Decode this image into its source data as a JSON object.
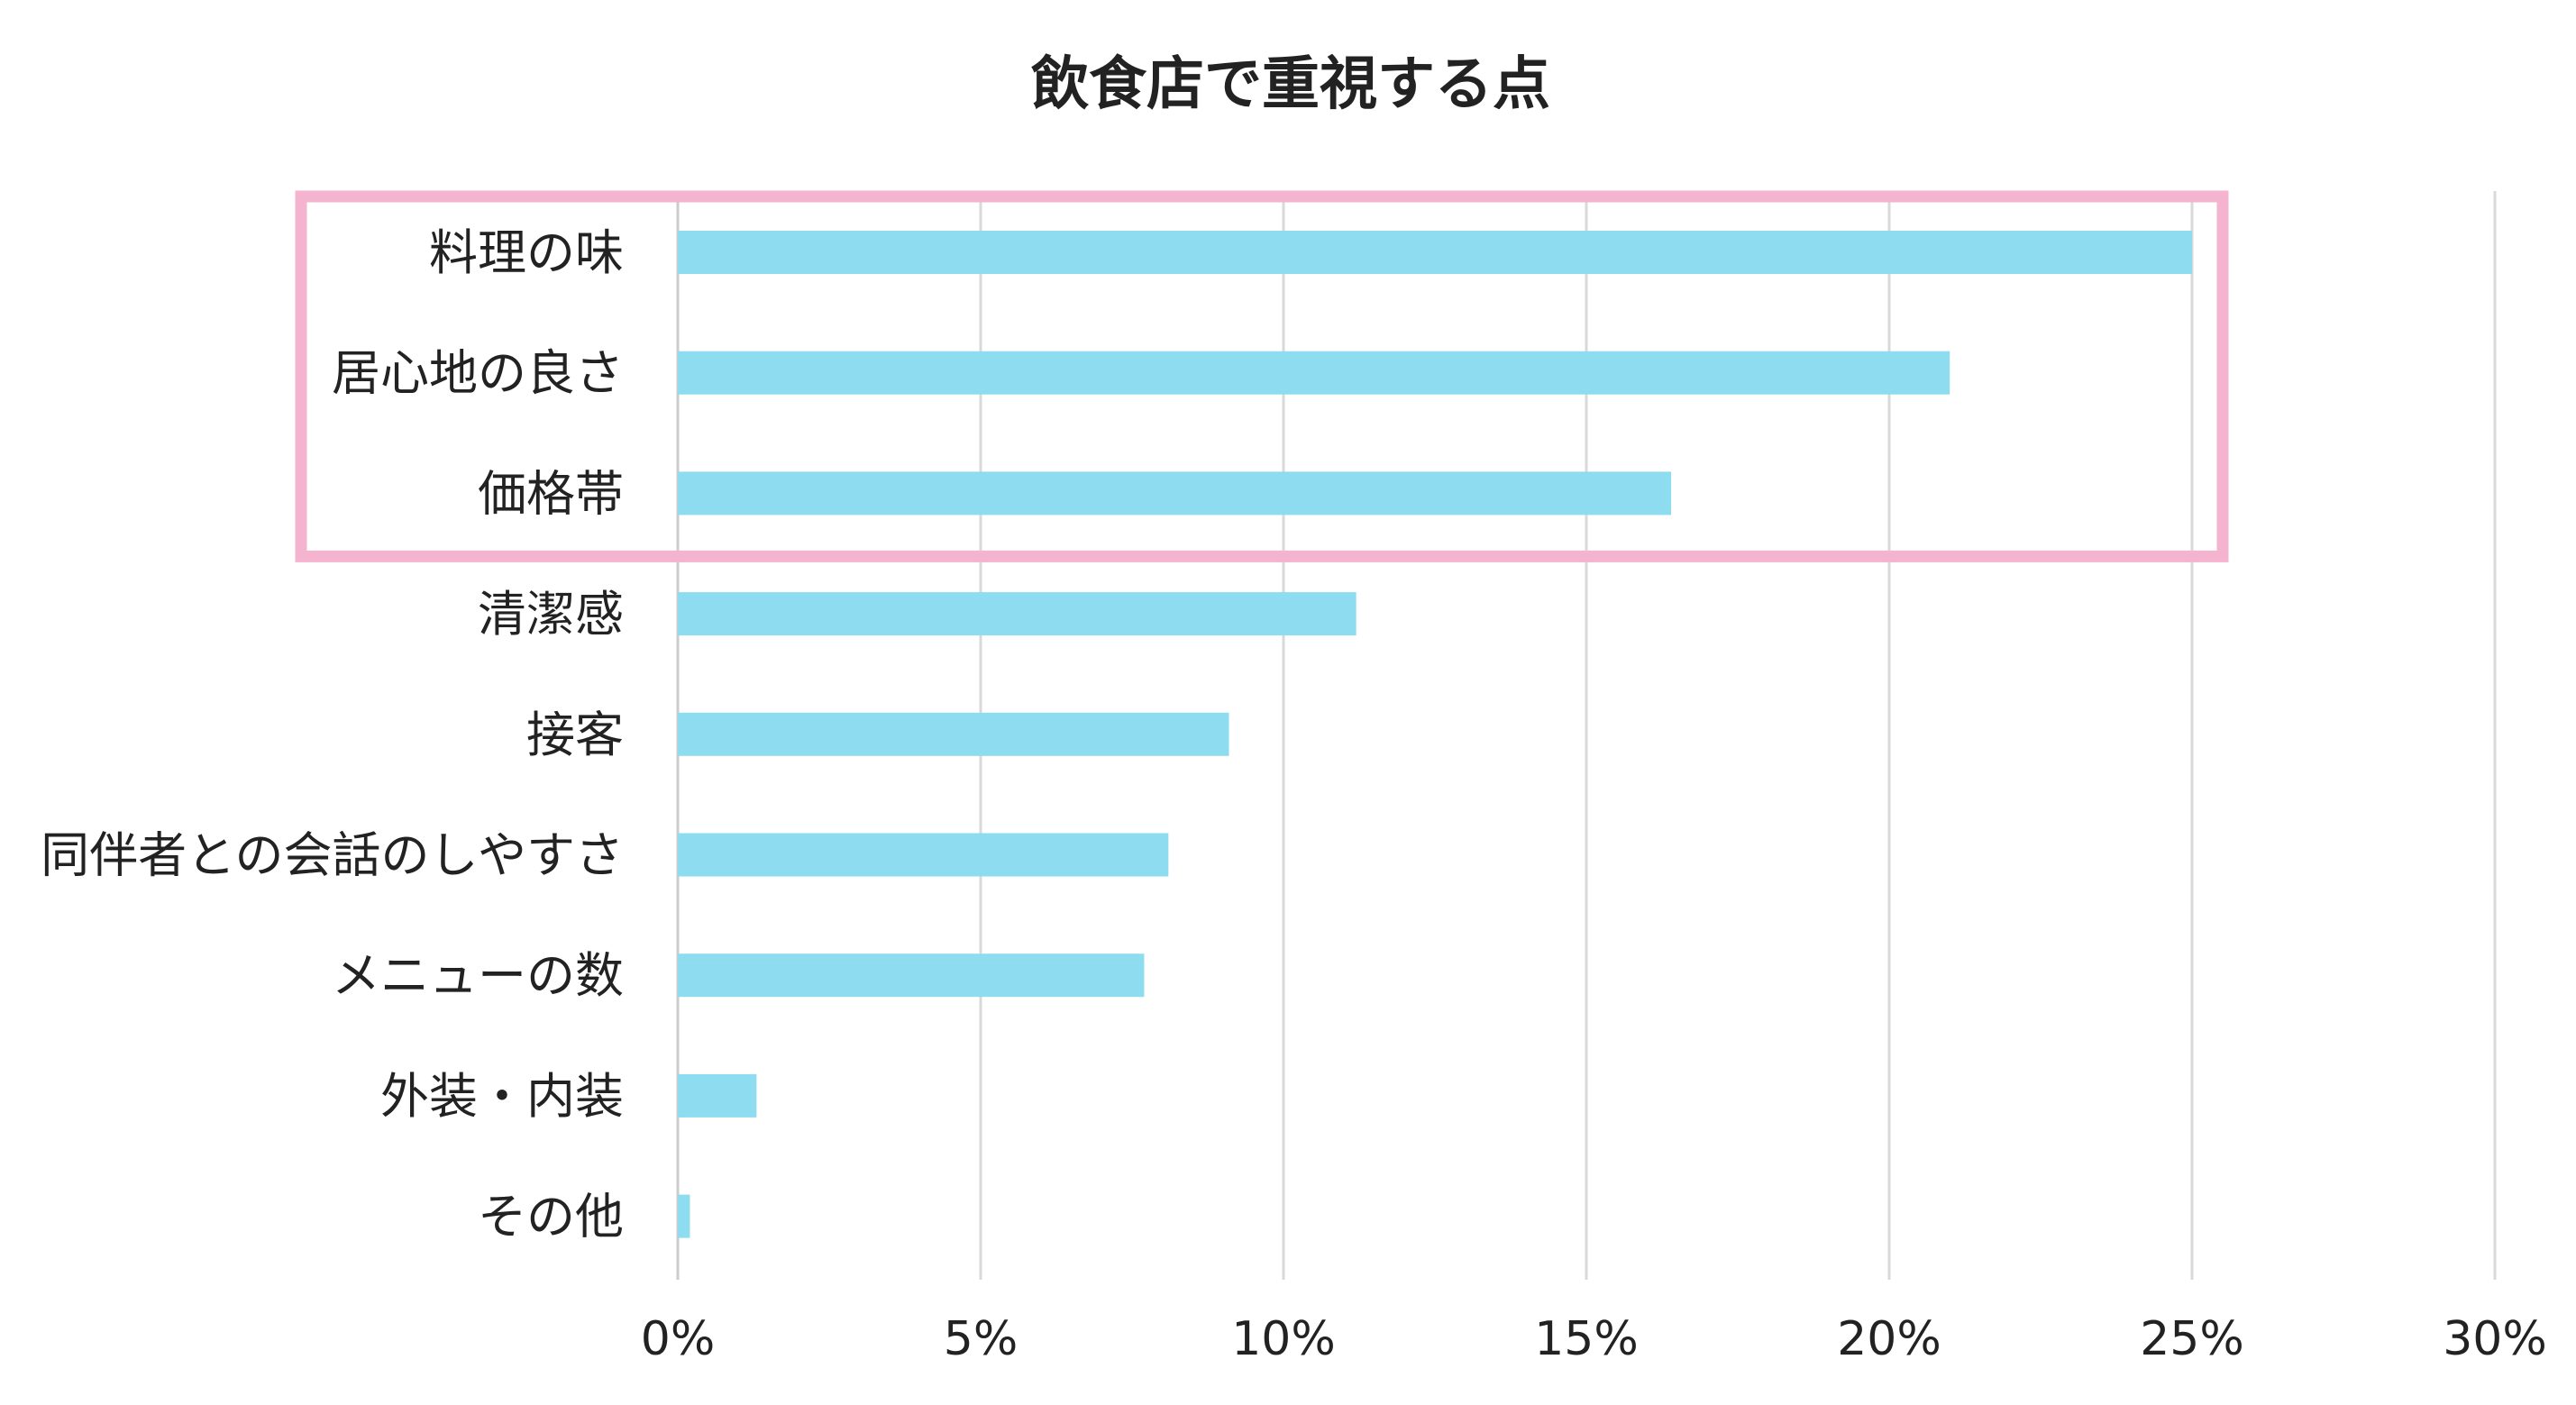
{
  "chart_data": {
    "type": "bar",
    "orientation": "horizontal",
    "title": "飲食店で重視する点",
    "xlabel": "",
    "ylabel": "",
    "categories": [
      "料理の味",
      "居心地の良さ",
      "価格帯",
      "清潔感",
      "接客",
      "同伴者との会話のしやすさ",
      "メニューの数",
      "外装・内装",
      "その他"
    ],
    "values": [
      25.0,
      21.0,
      16.4,
      11.2,
      9.1,
      8.1,
      7.7,
      1.3,
      0.2
    ],
    "value_unit": "%",
    "xlim": [
      0,
      30
    ],
    "xticks": [
      0,
      5,
      10,
      15,
      20,
      25,
      30
    ],
    "tick_labels": [
      "0%",
      "5%",
      "10%",
      "15%",
      "20%",
      "25%",
      "30%"
    ],
    "grid": "vertical",
    "legend": "none",
    "highlight": {
      "categories": [
        "料理の味",
        "居心地の良さ",
        "価格帯"
      ],
      "style": "outlined box"
    },
    "colors": {
      "bar": "#8ddcef",
      "grid": "#d9d9d9",
      "highlight_box": "#f4b3cf",
      "axis": "#cccccc",
      "text": "#222222"
    }
  }
}
